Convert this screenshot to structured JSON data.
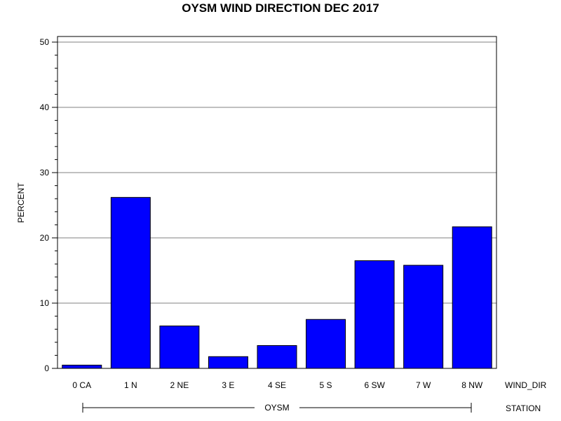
{
  "chart_data": {
    "type": "bar",
    "title": "OYSM WIND DIRECTION DEC 2017",
    "ylabel": "PERCENT",
    "xlabel": "WIND_DIR",
    "group_axis_label": "STATION",
    "group_label": "OYSM",
    "categories": [
      "0 CA",
      "1 N",
      "2 NE",
      "3 E",
      "4 SE",
      "5 S",
      "6 SW",
      "7 W",
      "8 NW"
    ],
    "values": [
      0.5,
      26.2,
      6.5,
      1.8,
      3.5,
      7.5,
      16.5,
      15.8,
      21.7
    ],
    "ylim": [
      0,
      50
    ],
    "yticks": [
      "0",
      "10",
      "20",
      "30",
      "40",
      "50"
    ],
    "grid": true,
    "colors": {
      "bar": "#0000ff",
      "grid": "#808080",
      "axis": "#000000"
    }
  }
}
